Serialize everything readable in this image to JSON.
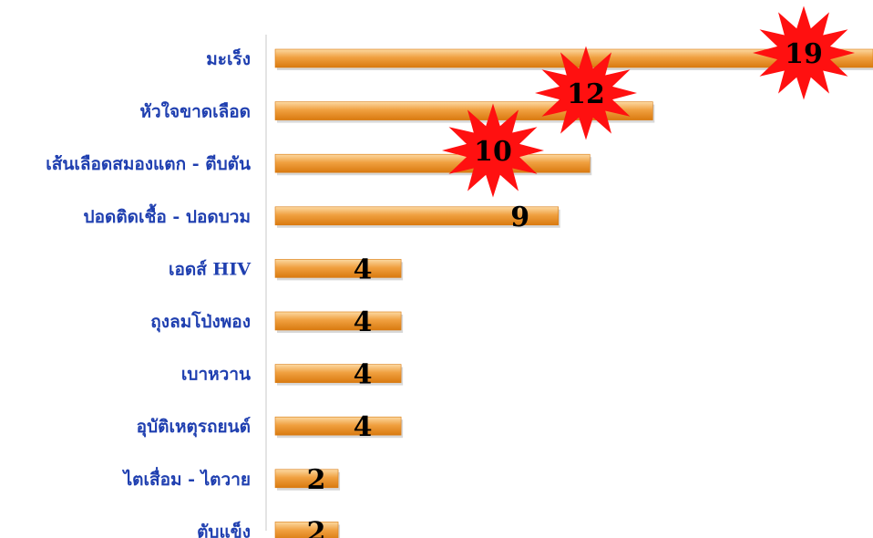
{
  "chart_data": {
    "type": "bar",
    "orientation": "horizontal",
    "categories": [
      "มะเร็ง",
      "หัวใจขาดเลือด",
      "เส้นเลือดสมองแตก - ตีบตัน",
      "ปอดติดเชื้อ - ปอดบวม",
      "เอดส์ HIV",
      "ถุงลมโป่งพอง",
      "เบาหวาน",
      "อุบัติเหตุรถยนต์",
      "ไตเสื่อม - ไตวาย",
      "ตับแข็ง"
    ],
    "values": [
      19,
      12,
      10,
      9,
      4,
      4,
      4,
      4,
      2,
      2
    ],
    "value_labels": [
      "19",
      "12",
      "10",
      "9",
      "4",
      "4",
      "4",
      "4",
      "2",
      "2"
    ],
    "highlighted": [
      true,
      true,
      true,
      false,
      false,
      false,
      false,
      false,
      false,
      false
    ],
    "xlim": [
      0,
      19
    ],
    "colors": {
      "bar": "#f0a040",
      "bar_light": "#fcd9a2",
      "bar_dark": "#d97a10",
      "burst": "#ff1010",
      "label": "#1f3fb0",
      "value": "#000000",
      "axis": "#c8c8c8"
    }
  }
}
